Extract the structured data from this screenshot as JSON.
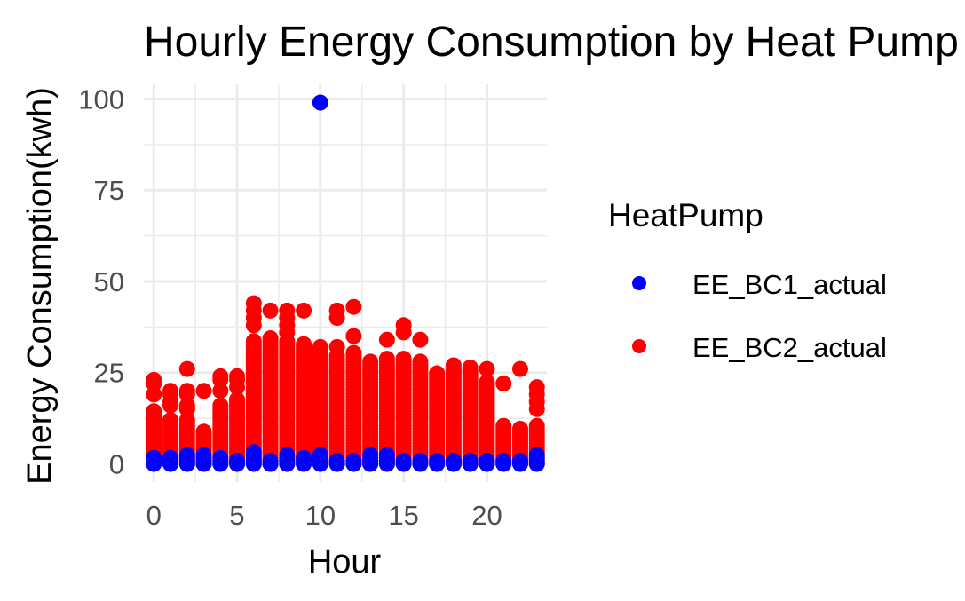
{
  "chart_data": {
    "type": "scatter",
    "title": "Hourly Energy Consumption by Heat Pump",
    "xlabel": "Hour",
    "ylabel": "Energy Consumption(kwh)",
    "xlim": [
      -0.6,
      23.6
    ],
    "ylim": [
      -5,
      104
    ],
    "x_ticks": [
      0,
      5,
      10,
      15,
      20
    ],
    "y_ticks": [
      0,
      25,
      50,
      75,
      100
    ],
    "grid": true,
    "legend": {
      "title": "HeatPump",
      "position": "right"
    },
    "series": [
      {
        "name": "EE_BC2_actual",
        "color": "#ff0000",
        "stacks": [
          {
            "x": 0,
            "ymax": 15,
            "extra": [
              19,
              22,
              23
            ]
          },
          {
            "x": 1,
            "ymax": 12,
            "extra": [
              16,
              17,
              19,
              20
            ]
          },
          {
            "x": 2,
            "ymax": 12,
            "extra": [
              15,
              16,
              19,
              20,
              26
            ]
          },
          {
            "x": 3,
            "ymax": 9,
            "extra": [
              20
            ]
          },
          {
            "x": 4,
            "ymax": 16,
            "extra": [
              20,
              23,
              24
            ]
          },
          {
            "x": 5,
            "ymax": 18,
            "extra": [
              21,
              23,
              24
            ]
          },
          {
            "x": 6,
            "ymax": 34,
            "extra": [
              38,
              40,
              42,
              44
            ]
          },
          {
            "x": 7,
            "ymax": 35,
            "extra": [
              42
            ]
          },
          {
            "x": 8,
            "ymax": 34,
            "extra": [
              36,
              38,
              40,
              42
            ]
          },
          {
            "x": 9,
            "ymax": 33,
            "extra": [
              42
            ]
          },
          {
            "x": 10,
            "ymax": 32,
            "extra": []
          },
          {
            "x": 11,
            "ymax": 30,
            "extra": [
              32,
              40,
              42
            ]
          },
          {
            "x": 12,
            "ymax": 31,
            "extra": [
              35,
              43
            ]
          },
          {
            "x": 13,
            "ymax": 28,
            "extra": []
          },
          {
            "x": 14,
            "ymax": 29,
            "extra": [
              34
            ]
          },
          {
            "x": 15,
            "ymax": 29,
            "extra": [
              36,
              38
            ]
          },
          {
            "x": 16,
            "ymax": 28,
            "extra": [
              34
            ]
          },
          {
            "x": 17,
            "ymax": 25,
            "extra": []
          },
          {
            "x": 18,
            "ymax": 26,
            "extra": [
              27
            ]
          },
          {
            "x": 19,
            "ymax": 27,
            "extra": []
          },
          {
            "x": 20,
            "ymax": 23,
            "extra": [
              26
            ]
          },
          {
            "x": 21,
            "ymax": 11,
            "extra": [
              22
            ]
          },
          {
            "x": 22,
            "ymax": 10,
            "extra": [
              26
            ]
          },
          {
            "x": 23,
            "ymax": 11,
            "extra": [
              15,
              17,
              19,
              21
            ]
          }
        ]
      },
      {
        "name": "EE_BC1_actual",
        "color": "#0000ff",
        "stacks": [
          {
            "x": 0,
            "ymax": 2
          },
          {
            "x": 1,
            "ymax": 2
          },
          {
            "x": 2,
            "ymax": 2.5
          },
          {
            "x": 3,
            "ymax": 2.5
          },
          {
            "x": 4,
            "ymax": 2
          },
          {
            "x": 5,
            "ymax": 1.5
          },
          {
            "x": 6,
            "ymax": 3.5
          },
          {
            "x": 7,
            "ymax": 1.5
          },
          {
            "x": 8,
            "ymax": 2.5
          },
          {
            "x": 9,
            "ymax": 2
          },
          {
            "x": 10,
            "ymax": 2.5
          },
          {
            "x": 11,
            "ymax": 1.5
          },
          {
            "x": 12,
            "ymax": 1.5
          },
          {
            "x": 13,
            "ymax": 2.5
          },
          {
            "x": 14,
            "ymax": 3
          },
          {
            "x": 15,
            "ymax": 1.5
          },
          {
            "x": 16,
            "ymax": 1
          },
          {
            "x": 17,
            "ymax": 1.5
          },
          {
            "x": 18,
            "ymax": 1
          },
          {
            "x": 19,
            "ymax": 1
          },
          {
            "x": 20,
            "ymax": 1
          },
          {
            "x": 21,
            "ymax": 1
          },
          {
            "x": 22,
            "ymax": 1.5
          },
          {
            "x": 23,
            "ymax": 2.5
          }
        ],
        "outliers": [
          {
            "x": 10,
            "y": 99
          }
        ]
      }
    ]
  }
}
